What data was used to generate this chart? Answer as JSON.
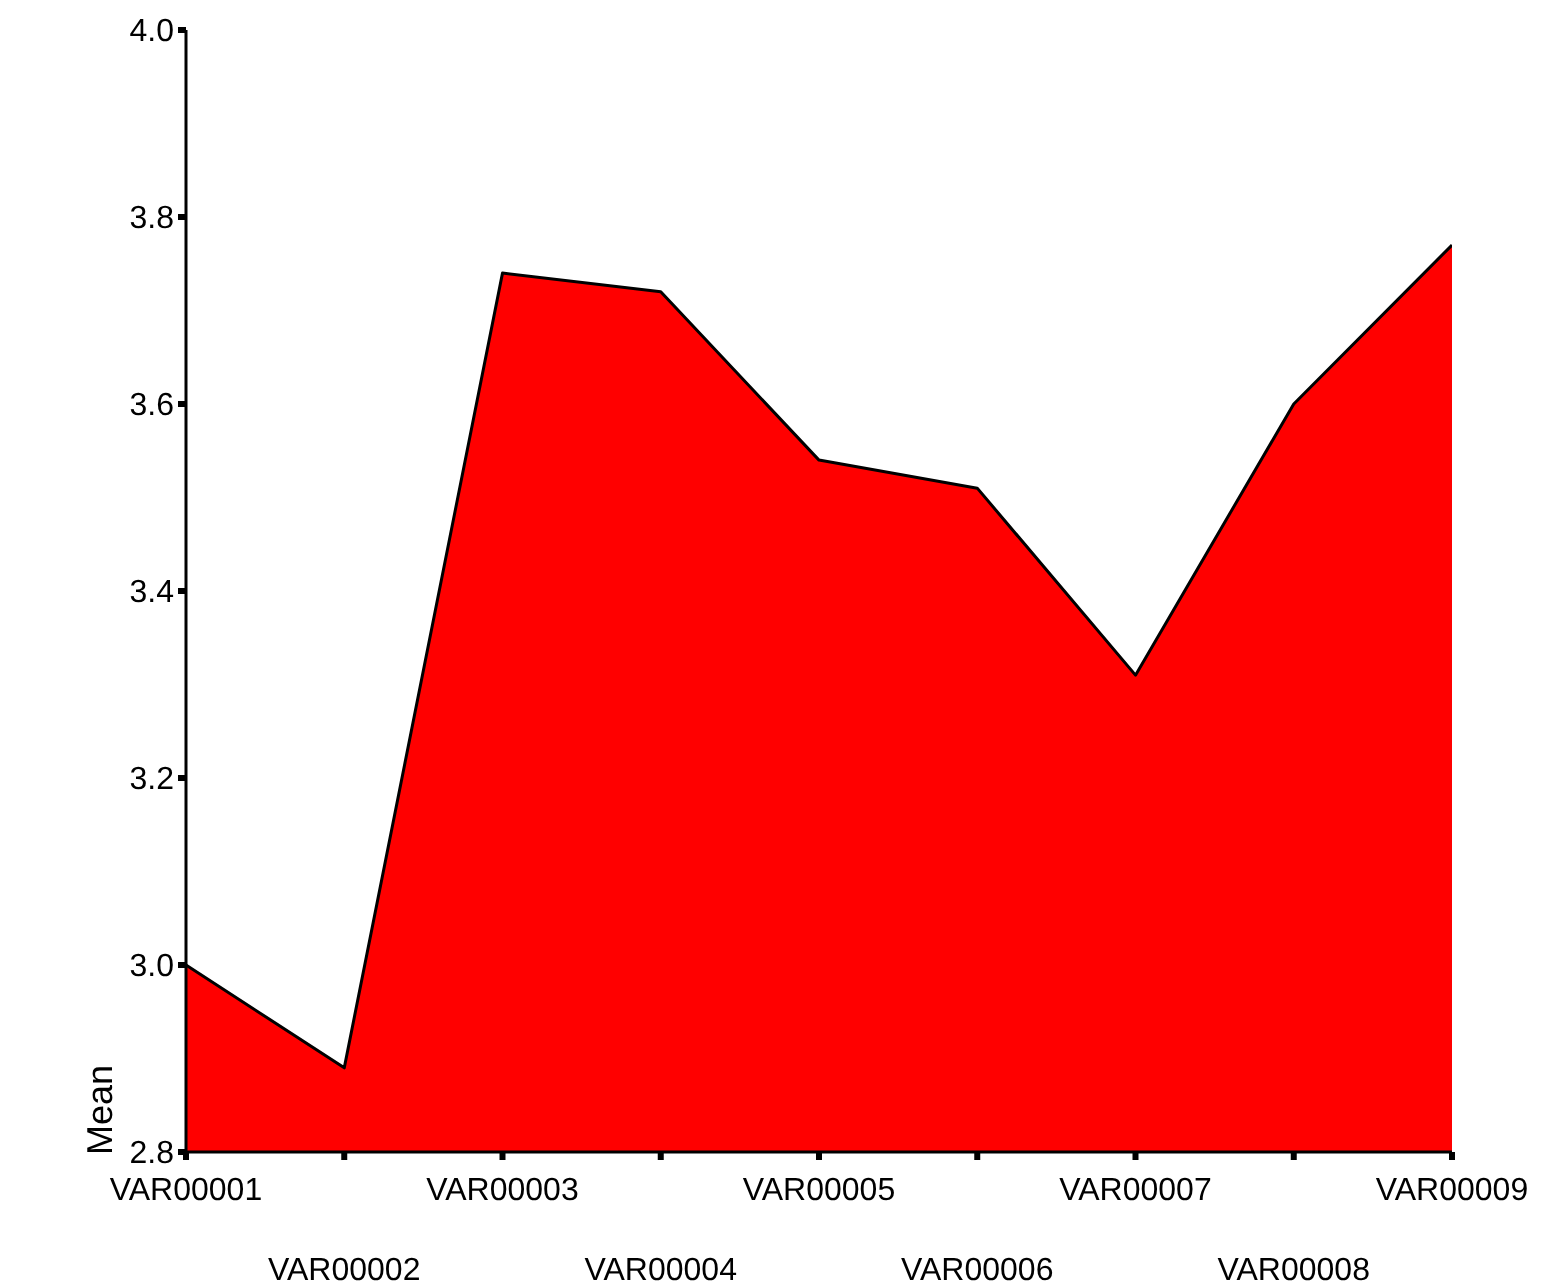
{
  "chart_data": {
    "type": "area",
    "ylabel": "Mean",
    "categories": [
      "VAR00001",
      "VAR00002",
      "VAR00003",
      "VAR00004",
      "VAR00005",
      "VAR00006",
      "VAR00007",
      "VAR00008",
      "VAR00009"
    ],
    "series": [
      {
        "color": "#ff0000",
        "values": [
          3.0,
          2.89,
          3.74,
          3.72,
          3.54,
          3.51,
          3.31,
          3.6,
          3.77
        ]
      }
    ],
    "ylim": [
      2.8,
      4.0
    ],
    "yticks": [
      {
        "value": 2.8,
        "label": "2.8"
      },
      {
        "value": 3,
        "label": "3.0"
      },
      {
        "value": 3.2,
        "label": "3.2"
      },
      {
        "value": 3.4,
        "label": "3.4"
      },
      {
        "value": 3.6,
        "label": "3.6"
      },
      {
        "value": 3.8,
        "label": "3.8"
      },
      {
        "value": 4,
        "label": "4.0"
      }
    ]
  }
}
